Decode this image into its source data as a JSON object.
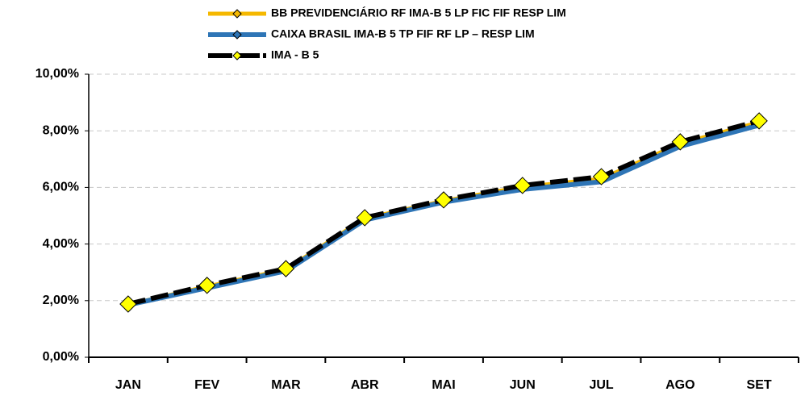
{
  "chart_data": {
    "type": "line",
    "categories": [
      "JAN",
      "FEV",
      "MAR",
      "ABR",
      "MAI",
      "JUN",
      "JUL",
      "AGO",
      "SET"
    ],
    "series": [
      {
        "name": "BB PREVIDENCIÁRIO RF IMA-B 5 LP FIC FIF RESP LIM",
        "color": "#f5b800",
        "values": [
          1.86,
          2.5,
          3.1,
          4.9,
          5.52,
          6.02,
          6.3,
          7.55,
          8.3
        ]
      },
      {
        "name": "CAIXA BRASIL IMA-B 5 TP FIF RF LP – RESP LIM",
        "color": "#2e75b6",
        "values": [
          1.85,
          2.45,
          3.05,
          4.85,
          5.48,
          5.93,
          6.2,
          7.45,
          8.2
        ]
      },
      {
        "name": "IMA - B 5",
        "color": "#000000",
        "values": [
          1.88,
          2.54,
          3.13,
          4.93,
          5.56,
          6.07,
          6.38,
          7.61,
          8.35
        ]
      }
    ],
    "ylim": [
      0,
      10
    ],
    "yticks": [
      {
        "value": 0,
        "label": "0,00%"
      },
      {
        "value": 2,
        "label": "2,00%"
      },
      {
        "value": 4,
        "label": "4,00%"
      },
      {
        "value": 6,
        "label": "6,00%"
      },
      {
        "value": 8,
        "label": "8,00%"
      },
      {
        "value": 10,
        "label": "10,00%"
      }
    ],
    "grid": true
  }
}
